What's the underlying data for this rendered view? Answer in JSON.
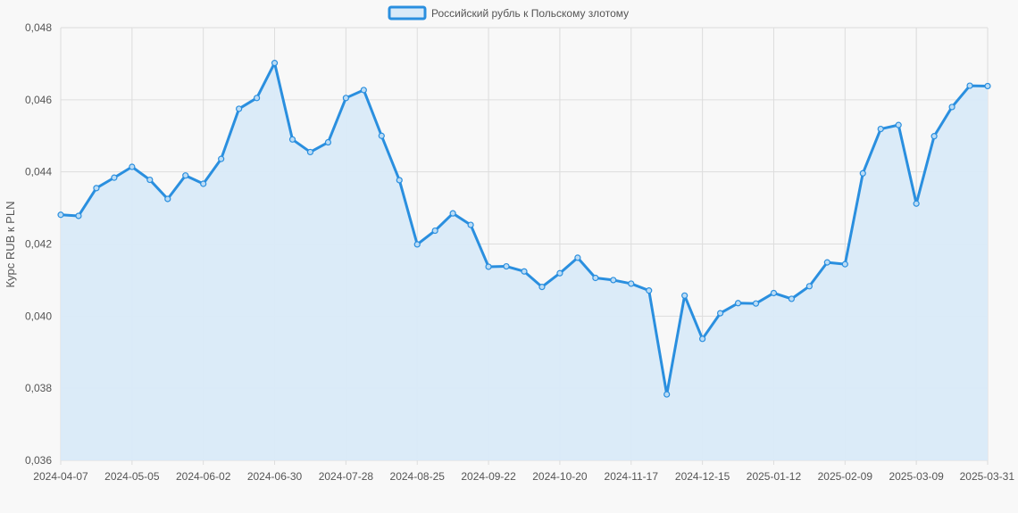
{
  "chart_data": {
    "type": "area",
    "title": "",
    "xlabel": "",
    "ylabel": "Курс RUB к PLN",
    "legend": {
      "position": "top-center",
      "label": "Российский рубль к Польскому злотому"
    },
    "grid": true,
    "colors": {
      "line": "#2a8fdf",
      "fill": "#d9eaf8",
      "grid": "#dddddd",
      "text": "#555555",
      "background": "#f8f8f8"
    },
    "ylim": [
      0.036,
      0.048
    ],
    "yticks": [
      "0,036",
      "0,038",
      "0,040",
      "0,042",
      "0,044",
      "0,046",
      "0,048"
    ],
    "xtick_labels": [
      "2024-04-07",
      "2024-05-05",
      "2024-06-02",
      "2024-06-30",
      "2024-07-28",
      "2024-08-25",
      "2024-09-22",
      "2024-10-20",
      "2024-11-17",
      "2024-12-15",
      "2025-01-12",
      "2025-02-09",
      "2025-03-09",
      "2025-03-31"
    ],
    "series": [
      {
        "name": "Российский рубль к Польскому злотому",
        "values": [
          0.04281,
          0.04278,
          0.04355,
          0.04384,
          0.04414,
          0.04378,
          0.04325,
          0.0439,
          0.04367,
          0.04436,
          0.04575,
          0.04605,
          0.04702,
          0.0449,
          0.04455,
          0.04482,
          0.04605,
          0.04627,
          0.045,
          0.04377,
          0.04199,
          0.04237,
          0.04285,
          0.04253,
          0.04137,
          0.04138,
          0.04124,
          0.04081,
          0.04119,
          0.04162,
          0.04106,
          0.041,
          0.0409,
          0.04071,
          0.03783,
          0.04057,
          0.03937,
          0.04008,
          0.04036,
          0.04035,
          0.04064,
          0.04048,
          0.04083,
          0.04149,
          0.04144,
          0.04396,
          0.04519,
          0.0453,
          0.04312,
          0.04499,
          0.0458,
          0.04639,
          0.04638
        ]
      }
    ]
  }
}
